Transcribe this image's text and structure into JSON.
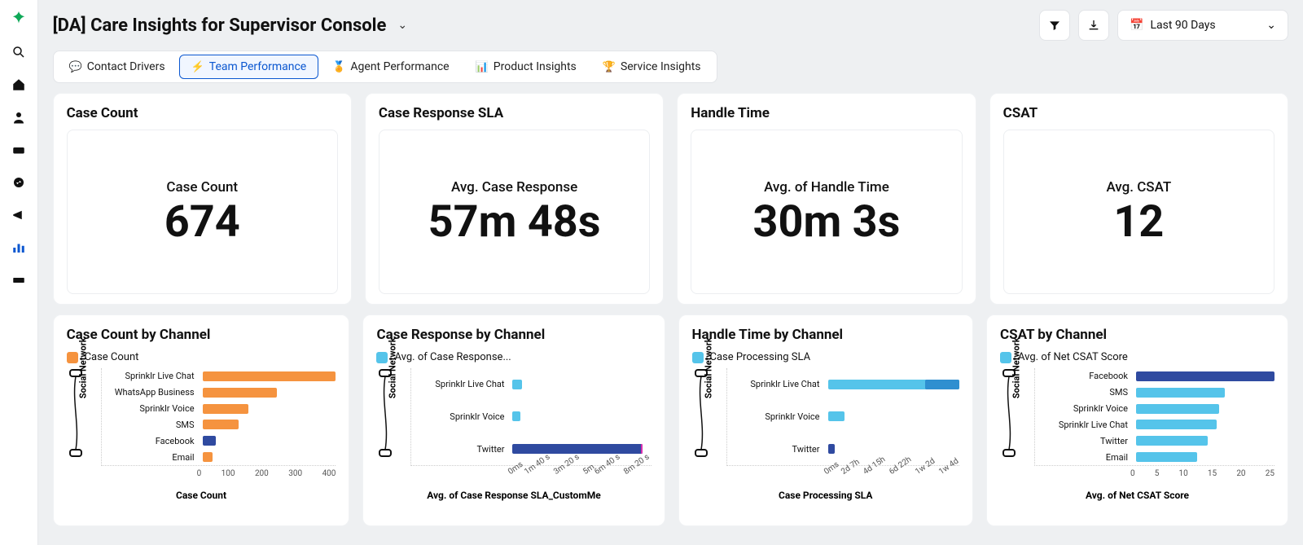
{
  "header": {
    "title": "[DA] Care Insights for Supervisor Console",
    "date_range_label": "Last 90 Days"
  },
  "tabs": [
    {
      "icon": "💬",
      "label": "Contact Drivers",
      "active": false
    },
    {
      "icon": "⚡",
      "label": "Team Performance",
      "active": true
    },
    {
      "icon": "🏅",
      "label": "Agent Performance",
      "active": false
    },
    {
      "icon": "📊",
      "label": "Product Insights",
      "active": false
    },
    {
      "icon": "🏆",
      "label": "Service Insights",
      "active": false
    }
  ],
  "kpi_cards": [
    {
      "title": "Case Count",
      "metric_label": "Case Count",
      "metric_value": "674"
    },
    {
      "title": "Case Response SLA",
      "metric_label": "Avg. Case Response",
      "metric_value": "57m 48s"
    },
    {
      "title": "Handle Time",
      "metric_label": "Avg. of Handle Time",
      "metric_value": "30m 3s"
    },
    {
      "title": "CSAT",
      "metric_label": "Avg. CSAT",
      "metric_value": "12"
    }
  ],
  "channel_charts": {
    "y_axis_label": "Social Network",
    "case_count": {
      "title": "Case Count by Channel",
      "legend": "Case Count",
      "legend_color": "#f5933f",
      "x_axis_label": "Case Count",
      "xticks": [
        "0",
        "100",
        "200",
        "300",
        "400"
      ],
      "max": 420,
      "bars": [
        {
          "label": "Sprinklr Live Chat",
          "value": 405,
          "color": "#f5933f"
        },
        {
          "label": "WhatsApp Business",
          "value": 225,
          "color": "#f5933f"
        },
        {
          "label": "Sprinklr Voice",
          "value": 140,
          "color": "#f5933f"
        },
        {
          "label": "SMS",
          "value": 110,
          "color": "#f5933f"
        },
        {
          "label": "Facebook",
          "value": 40,
          "color": "#2f4aa0"
        },
        {
          "label": "Email",
          "value": 30,
          "color": "#f5933f"
        }
      ]
    },
    "case_response": {
      "title": "Case Response by Channel",
      "legend": "Avg. of Case Response...",
      "legend_color": "#55c4ea",
      "x_axis_label": "Avg. of Case Response SLA_CustomMe",
      "xticks": [
        "0ms",
        "1m 40 s",
        "3m 20 s",
        "5m",
        "6m 40 s",
        "8m 20 s"
      ],
      "max": 500,
      "bars": [
        {
          "label": "Sprinklr Live Chat",
          "value": 35,
          "color": "#55c4ea"
        },
        {
          "label": "Sprinklr Voice",
          "value": 28,
          "color": "#55c4ea"
        },
        {
          "label": "Twitter",
          "value": 470,
          "color": "#2f4aa0",
          "extra": {
            "value": 8,
            "color": "#d92fae"
          }
        }
      ]
    },
    "handle_time": {
      "title": "Handle Time by Channel",
      "legend": "Case Processing SLA",
      "legend_color": "#55c4ea",
      "x_axis_label": "Case Processing SLA",
      "xticks": [
        "0ms",
        "2d 7h",
        "4d 15h",
        "6d 22h",
        "1w 2d",
        "1w 4d"
      ],
      "max": 100,
      "bars": [
        {
          "label": "Sprinklr Live Chat",
          "value": 95,
          "color": "#55c4ea",
          "extra": {
            "value": 25,
            "color": "#2f8fd0"
          }
        },
        {
          "label": "Sprinklr Voice",
          "value": 12,
          "color": "#55c4ea"
        },
        {
          "label": "Twitter",
          "value": 5,
          "color": "#2f4aa0"
        }
      ]
    },
    "csat": {
      "title": "CSAT by Channel",
      "legend": "Avg. of Net CSAT Score",
      "legend_color": "#55c4ea",
      "x_axis_label": "Avg. of Net CSAT Score",
      "xticks": [
        "0",
        "5",
        "10",
        "15",
        "20",
        "25"
      ],
      "max": 25,
      "bars": [
        {
          "label": "Facebook",
          "value": 25,
          "color": "#2f4aa0"
        },
        {
          "label": "SMS",
          "value": 16,
          "color": "#55c4ea"
        },
        {
          "label": "Sprinklr Voice",
          "value": 15,
          "color": "#55c4ea"
        },
        {
          "label": "Sprinklr Live Chat",
          "value": 14.5,
          "color": "#55c4ea"
        },
        {
          "label": "Twitter",
          "value": 13,
          "color": "#55c4ea"
        },
        {
          "label": "Email",
          "value": 11,
          "color": "#55c4ea"
        }
      ]
    }
  },
  "colors": {
    "background": "#eef0f2",
    "card": "#ffffff",
    "active_tab": "#0b57d0"
  }
}
